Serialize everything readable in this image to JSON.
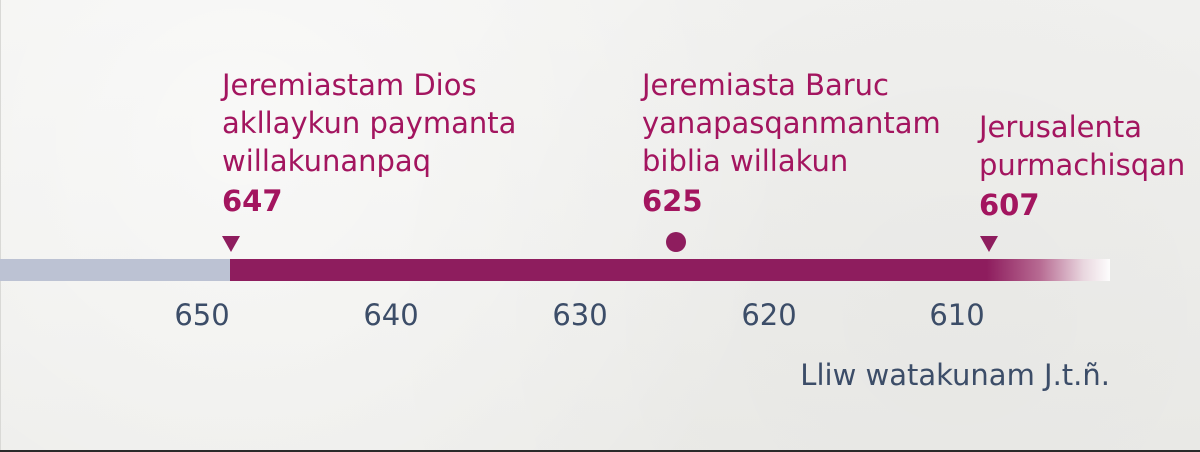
{
  "timeline": {
    "events": [
      {
        "label": "Jeremiastam Dios\nakllaykun paymanta\nwillakunanpaq",
        "year": "647",
        "marker": "triangle"
      },
      {
        "label": "Jeremiasta Baruc\nyanapasqanmantam\nbiblia willakun",
        "year": "625",
        "marker": "dot"
      },
      {
        "label": "Jerusalenta\npurmachisqan",
        "year": "607",
        "marker": "triangle"
      }
    ],
    "ticks": [
      "650",
      "640",
      "630",
      "620",
      "610"
    ],
    "footnote": "Lliw watakunam J.t.ñ.",
    "colors": {
      "accent": "#a3155f",
      "bar": "#8e1d5e",
      "bar_before": "#bcc2d3",
      "axis_text": "#3c4d68"
    }
  }
}
